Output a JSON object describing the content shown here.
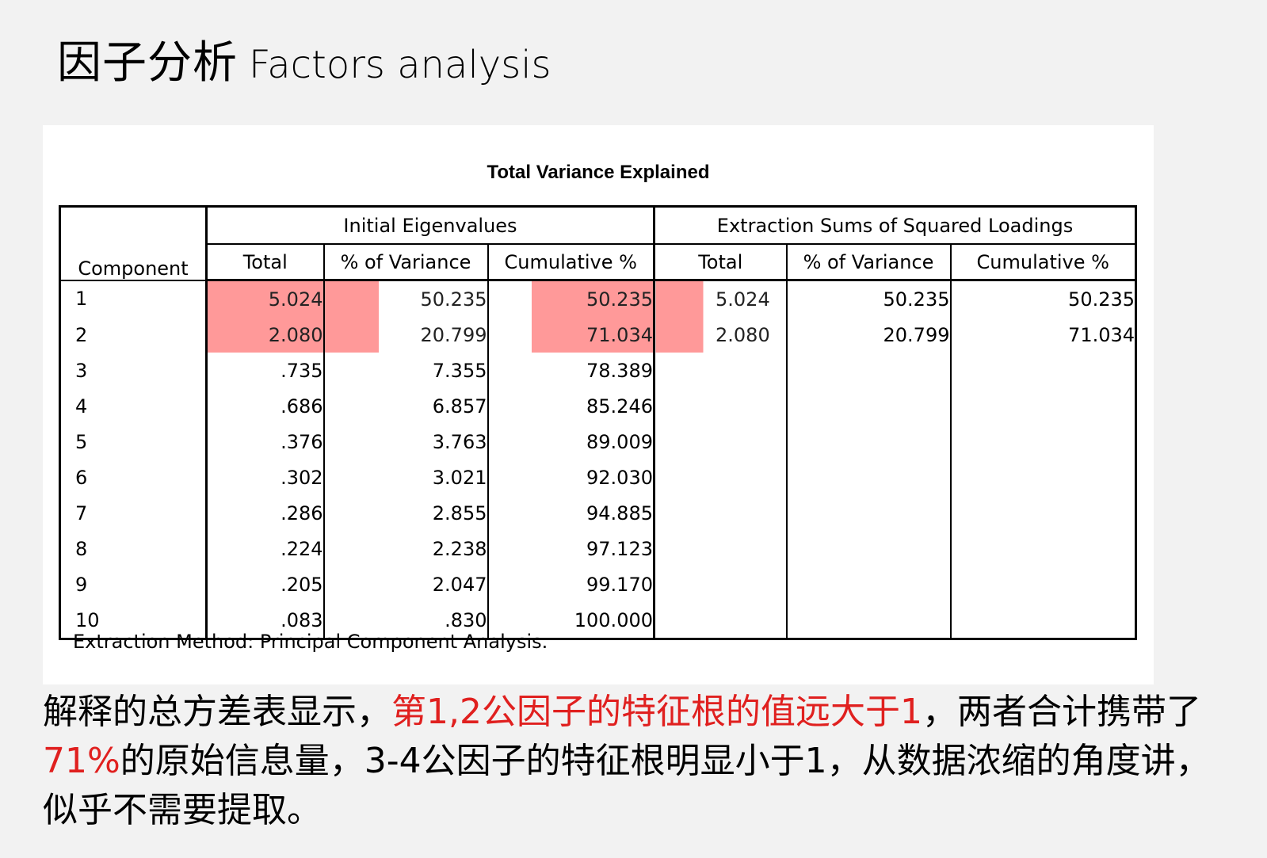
{
  "title": {
    "cn": "因子分析",
    "en": "Factors analysis"
  },
  "table": {
    "title": "Total Variance Explained",
    "component_header": "Component",
    "group_initial": "Initial Eigenvalues",
    "group_extraction": "Extraction Sums of Squared Loadings",
    "sub_headers": [
      "Total",
      "% of Variance",
      "Cumulative %",
      "Total",
      "% of Variance",
      "Cumulative %"
    ],
    "rows": [
      {
        "c": "1",
        "v": [
          "5.024",
          "50.235",
          "50.235",
          "5.024",
          "50.235",
          "50.235"
        ]
      },
      {
        "c": "2",
        "v": [
          "2.080",
          "20.799",
          "71.034",
          "2.080",
          "20.799",
          "71.034"
        ]
      },
      {
        "c": "3",
        "v": [
          ".735",
          "7.355",
          "78.389",
          "",
          "",
          ""
        ]
      },
      {
        "c": "4",
        "v": [
          ".686",
          "6.857",
          "85.246",
          "",
          "",
          ""
        ]
      },
      {
        "c": "5",
        "v": [
          ".376",
          "3.763",
          "89.009",
          "",
          "",
          ""
        ]
      },
      {
        "c": "6",
        "v": [
          ".302",
          "3.021",
          "92.030",
          "",
          "",
          ""
        ]
      },
      {
        "c": "7",
        "v": [
          ".286",
          "2.855",
          "94.885",
          "",
          "",
          ""
        ]
      },
      {
        "c": "8",
        "v": [
          ".224",
          "2.238",
          "97.123",
          "",
          "",
          ""
        ]
      },
      {
        "c": "9",
        "v": [
          ".205",
          "2.047",
          "99.170",
          "",
          "",
          ""
        ]
      },
      {
        "c": "10",
        "v": [
          ".083",
          ".830",
          "100.000",
          "",
          "",
          ""
        ]
      }
    ],
    "footnote": "Extraction Method: Principal Component Analysis.",
    "highlight_color": "#ff9999"
  },
  "paragraph": {
    "p1": "解释的总方差表显示，",
    "p2_red": "第1,2公因子的特征根的值远大于1",
    "p3": "，两者合计携带了",
    "p4_red": "71%",
    "p5": "的原始信息量，3-4公因子的特征根明显小于1，从数据浓缩的角度讲，似乎不需要提取。",
    "red_color": "#e0201f"
  }
}
